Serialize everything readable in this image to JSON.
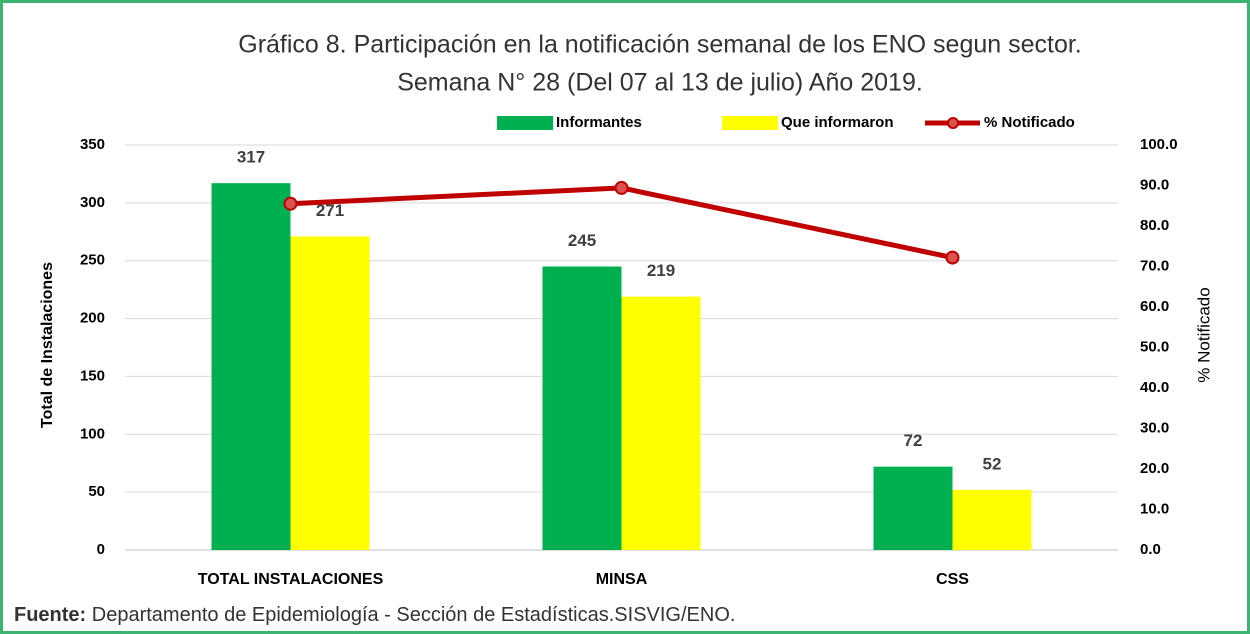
{
  "chart_data": {
    "type": "bar",
    "title": "Gráfico 8. Participación en la notificación semanal  de los ENO segun sector.",
    "subtitle": "Semana N° 28 (Del 07 al 13 de julio) Año 2019.",
    "categories": [
      "TOTAL INSTALACIONES",
      "MINSA",
      "CSS"
    ],
    "series": [
      {
        "name": "Informantes",
        "color": "#00b050",
        "values": [
          317,
          245,
          72
        ]
      },
      {
        "name": "Que informaron",
        "color": "#ffff00",
        "values": [
          271,
          219,
          52
        ]
      },
      {
        "name": "% Notificado",
        "color": "#c00000",
        "type": "line",
        "axis": "y2",
        "values": [
          85.5,
          89.4,
          72.2
        ]
      }
    ],
    "ylabel": "Total de Instalaciones",
    "y2label": "% Notificado",
    "ylim": [
      0,
      350
    ],
    "yticks": [
      0,
      50,
      100,
      150,
      200,
      250,
      300,
      350
    ],
    "y2lim": [
      0,
      100
    ],
    "y2ticks": [
      {
        "value": 0,
        "label": "0.0"
      },
      {
        "value": 10,
        "label": "10.0"
      },
      {
        "value": 20,
        "label": "20.0"
      },
      {
        "value": 30,
        "label": "30.0"
      },
      {
        "value": 40,
        "label": "40.0"
      },
      {
        "value": 50,
        "label": "50.0"
      },
      {
        "value": 60,
        "label": "60.0"
      },
      {
        "value": 70,
        "label": "70.0"
      },
      {
        "value": 80,
        "label": "80.0"
      },
      {
        "value": 90,
        "label": "90.0"
      },
      {
        "value": 100,
        "label": "100.0"
      }
    ],
    "grid": true,
    "legend": "top",
    "source_label": "Fuente:",
    "source_text": "Departamento de Epidemiología - Sección de Estadísticas.SISVIG/ENO."
  }
}
